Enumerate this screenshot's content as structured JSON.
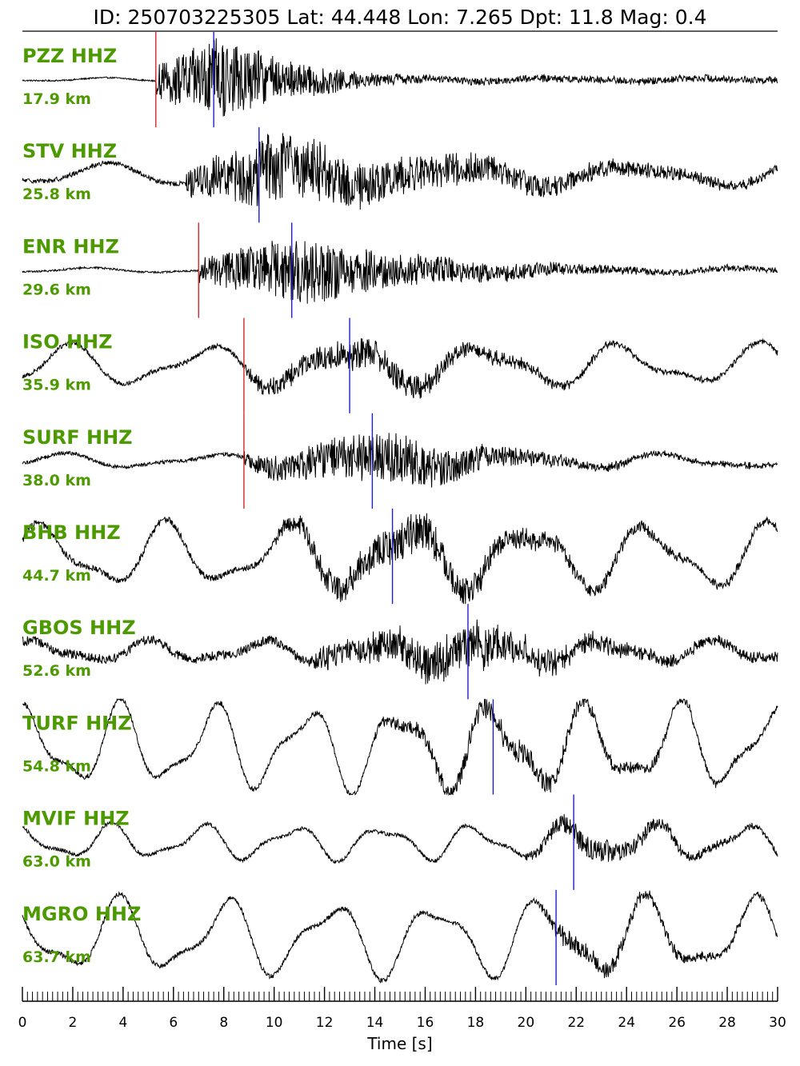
{
  "header": {
    "title": "ID: 250703225305 Lat:  44.448 Lon:   7.265 Dpt:    11.8 Mag:   0.4"
  },
  "colors": {
    "trace": "#000000",
    "p_pick": "#d62728",
    "s_pick": "#1f1fc8",
    "label": "#4c9a00"
  },
  "chart_data": {
    "type": "line",
    "title": "ID: 250703225305 Lat:  44.448 Lon:   7.265 Dpt:    11.8 Mag:   0.4",
    "xlabel": "Time [s]",
    "ylabel": "",
    "xlim": [
      0,
      30
    ],
    "x_ticks": [
      "0",
      "2",
      "4",
      "6",
      "8",
      "10",
      "12",
      "14",
      "16",
      "18",
      "20",
      "22",
      "24",
      "26",
      "28",
      "30"
    ],
    "minor_tick_step": 0.2,
    "grid": false,
    "series": [
      {
        "name": "PZZ HHZ",
        "distance": "17.9 km",
        "p_pick": 5.3,
        "s_pick": 7.6,
        "noise": 0.015,
        "burst": 0.9,
        "lf_amp": 0.03,
        "lf_period": 6.0,
        "decay": 3.5,
        "burst_start": 5.3,
        "burst_peak": 7.8
      },
      {
        "name": "STV HHZ",
        "distance": "25.8 km",
        "p_pick": null,
        "s_pick": 9.4,
        "noise": 0.05,
        "burst": 0.75,
        "lf_amp": 0.18,
        "lf_period": 7.0,
        "decay": 9.0,
        "burst_start": 6.5,
        "burst_peak": 9.6
      },
      {
        "name": "ENR HHZ",
        "distance": "29.6 km",
        "p_pick": 7.0,
        "s_pick": 10.7,
        "noise": 0.02,
        "burst": 0.7,
        "lf_amp": 0.04,
        "lf_period": 6.5,
        "decay": 6.0,
        "burst_start": 7.0,
        "burst_peak": 11.0
      },
      {
        "name": "ISO HHZ",
        "distance": "35.9 km",
        "p_pick": 8.8,
        "s_pick": 13.0,
        "noise": 0.05,
        "burst": 0.35,
        "lf_amp": 0.35,
        "lf_period": 5.5,
        "decay": 5.0,
        "burst_start": 8.8,
        "burst_peak": 13.8
      },
      {
        "name": "SURF HHZ",
        "distance": "38.0 km",
        "p_pick": 8.8,
        "s_pick": 13.9,
        "noise": 0.04,
        "burst": 0.55,
        "lf_amp": 0.12,
        "lf_period": 6.0,
        "decay": 4.0,
        "burst_start": 8.8,
        "burst_peak": 15.0
      },
      {
        "name": "BHB HHZ",
        "distance": "44.7 km",
        "p_pick": null,
        "s_pick": 14.7,
        "noise": 0.07,
        "burst": 0.4,
        "lf_amp": 0.55,
        "lf_period": 4.8,
        "decay": 6.0,
        "burst_start": 10.0,
        "burst_peak": 15.5
      },
      {
        "name": "GBOS HHZ",
        "distance": "52.6 km",
        "p_pick": null,
        "s_pick": 17.7,
        "noise": 0.1,
        "burst": 0.5,
        "lf_amp": 0.18,
        "lf_period": 4.5,
        "decay": 4.0,
        "burst_start": 11.5,
        "burst_peak": 17.9
      },
      {
        "name": "TURF HHZ",
        "distance": "54.8 km",
        "p_pick": null,
        "s_pick": 18.7,
        "noise": 0.05,
        "burst": 0.25,
        "lf_amp": 0.72,
        "lf_period": 3.7,
        "decay": 6.0,
        "burst_start": 14.0,
        "burst_peak": 19.0
      },
      {
        "name": "MVIF HHZ",
        "distance": "63.0 km",
        "p_pick": null,
        "s_pick": 21.9,
        "noise": 0.04,
        "burst": 0.25,
        "lf_amp": 0.3,
        "lf_period": 3.6,
        "decay": 4.0,
        "burst_start": 20.0,
        "burst_peak": 22.5
      },
      {
        "name": "MGRO HHZ",
        "distance": "63.7 km",
        "p_pick": null,
        "s_pick": 21.2,
        "noise": 0.05,
        "burst": 0.22,
        "lf_amp": 0.65,
        "lf_period": 4.2,
        "decay": 5.0,
        "burst_start": 20.5,
        "burst_peak": 21.5
      }
    ]
  }
}
